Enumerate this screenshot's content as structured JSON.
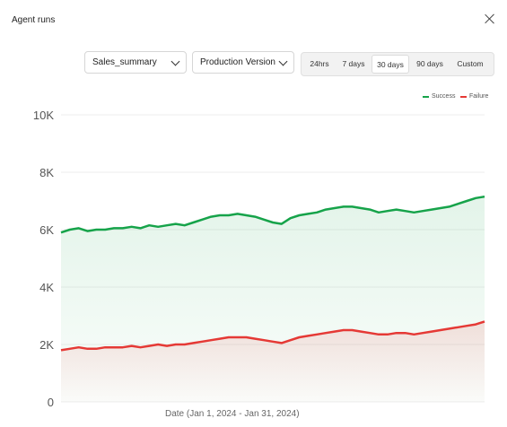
{
  "header": {
    "title": "Agent runs"
  },
  "filters": {
    "agent_select": "Sales_summary",
    "version_select": "Production Version",
    "ranges": [
      "24hrs",
      "7 days",
      "30 days",
      "90 days",
      "Custom"
    ],
    "active_range": "30 days"
  },
  "legend": {
    "success": "Success",
    "failure": "Failure"
  },
  "colors": {
    "success": "#16a34a",
    "failure": "#e53935",
    "grid": "#eeeeee"
  },
  "chart_data": {
    "type": "area",
    "xlabel": "Date (Jan 1, 2024 -  Jan 31, 2024)",
    "ylim": [
      0,
      10000
    ],
    "yticks": [
      0,
      2000,
      4000,
      6000,
      8000,
      10000
    ],
    "ytick_labels": [
      "0",
      "2K",
      "4K",
      "6K",
      "8K",
      "10K"
    ],
    "grid": true,
    "legend_position": "top-right",
    "series": [
      {
        "name": "Success",
        "values": [
          5900,
          6000,
          6050,
          5950,
          6000,
          6000,
          6050,
          6050,
          6100,
          6050,
          6150,
          6100,
          6150,
          6200,
          6150,
          6250,
          6350,
          6450,
          6500,
          6500,
          6550,
          6500,
          6450,
          6350,
          6250,
          6200,
          6400,
          6500,
          6550,
          6600,
          6700,
          6750,
          6800,
          6800,
          6750,
          6700,
          6600,
          6650,
          6700,
          6650,
          6600,
          6650,
          6700,
          6750,
          6800,
          6900,
          7000,
          7100,
          7150
        ]
      },
      {
        "name": "Failure",
        "values": [
          1800,
          1850,
          1900,
          1850,
          1850,
          1900,
          1900,
          1900,
          1950,
          1900,
          1950,
          2000,
          1950,
          2000,
          2000,
          2050,
          2100,
          2150,
          2200,
          2250,
          2250,
          2250,
          2200,
          2150,
          2100,
          2050,
          2150,
          2250,
          2300,
          2350,
          2400,
          2450,
          2500,
          2500,
          2450,
          2400,
          2350,
          2350,
          2400,
          2400,
          2350,
          2400,
          2450,
          2500,
          2550,
          2600,
          2650,
          2700,
          2800
        ]
      }
    ]
  }
}
